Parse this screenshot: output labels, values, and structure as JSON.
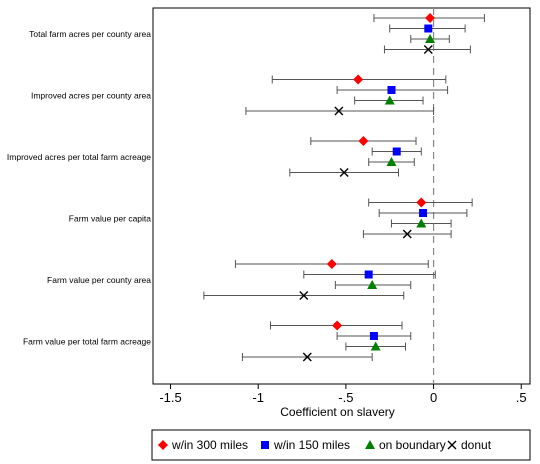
{
  "chart_data": {
    "type": "scatter",
    "subtype": "coefficient-plot-with-confidence-intervals",
    "xlabel": "Coefficient on slavery",
    "xlim": [
      -1.6,
      0.55
    ],
    "xticks": [
      -1.5,
      -1,
      -0.5,
      0,
      0.5
    ],
    "xtick_labels": [
      "-1.5",
      "-1",
      "-.5",
      "0",
      ".5"
    ],
    "reference_line_x": 0,
    "categories": [
      "Total farm acres per county area",
      "Improved acres per county area",
      "Improved acres per total farm acreage",
      "Farm value per capita",
      "Farm value per county area",
      "Farm value per total farm acreage"
    ],
    "series": [
      {
        "name": "w/in 300 miles",
        "marker": "diamond",
        "color": "#ff0000",
        "values": [
          -0.02,
          -0.43,
          -0.4,
          -0.07,
          -0.58,
          -0.55
        ],
        "ci_low": [
          -0.34,
          -0.92,
          -0.7,
          -0.37,
          -1.13,
          -0.93
        ],
        "ci_high": [
          0.29,
          0.07,
          -0.1,
          0.22,
          -0.03,
          -0.18
        ]
      },
      {
        "name": "w/in 150 miles",
        "marker": "square",
        "color": "#0000ff",
        "values": [
          -0.03,
          -0.24,
          -0.21,
          -0.06,
          -0.37,
          -0.34
        ],
        "ci_low": [
          -0.25,
          -0.55,
          -0.35,
          -0.31,
          -0.74,
          -0.55
        ],
        "ci_high": [
          0.18,
          0.08,
          -0.07,
          0.19,
          0.01,
          -0.13
        ]
      },
      {
        "name": "on boundary",
        "marker": "triangle",
        "color": "#008000",
        "values": [
          -0.02,
          -0.25,
          -0.24,
          -0.07,
          -0.35,
          -0.33
        ],
        "ci_low": [
          -0.13,
          -0.45,
          -0.37,
          -0.24,
          -0.56,
          -0.5
        ],
        "ci_high": [
          0.09,
          -0.06,
          -0.11,
          0.1,
          -0.13,
          -0.16
        ]
      },
      {
        "name": "donut",
        "marker": "x",
        "color": "#000000",
        "values": [
          -0.03,
          -0.54,
          -0.51,
          -0.15,
          -0.74,
          -0.72
        ],
        "ci_low": [
          -0.28,
          -1.07,
          -0.82,
          -0.4,
          -1.31,
          -1.09
        ],
        "ci_high": [
          0.21,
          0.0,
          -0.2,
          0.1,
          -0.17,
          -0.35
        ]
      }
    ]
  }
}
